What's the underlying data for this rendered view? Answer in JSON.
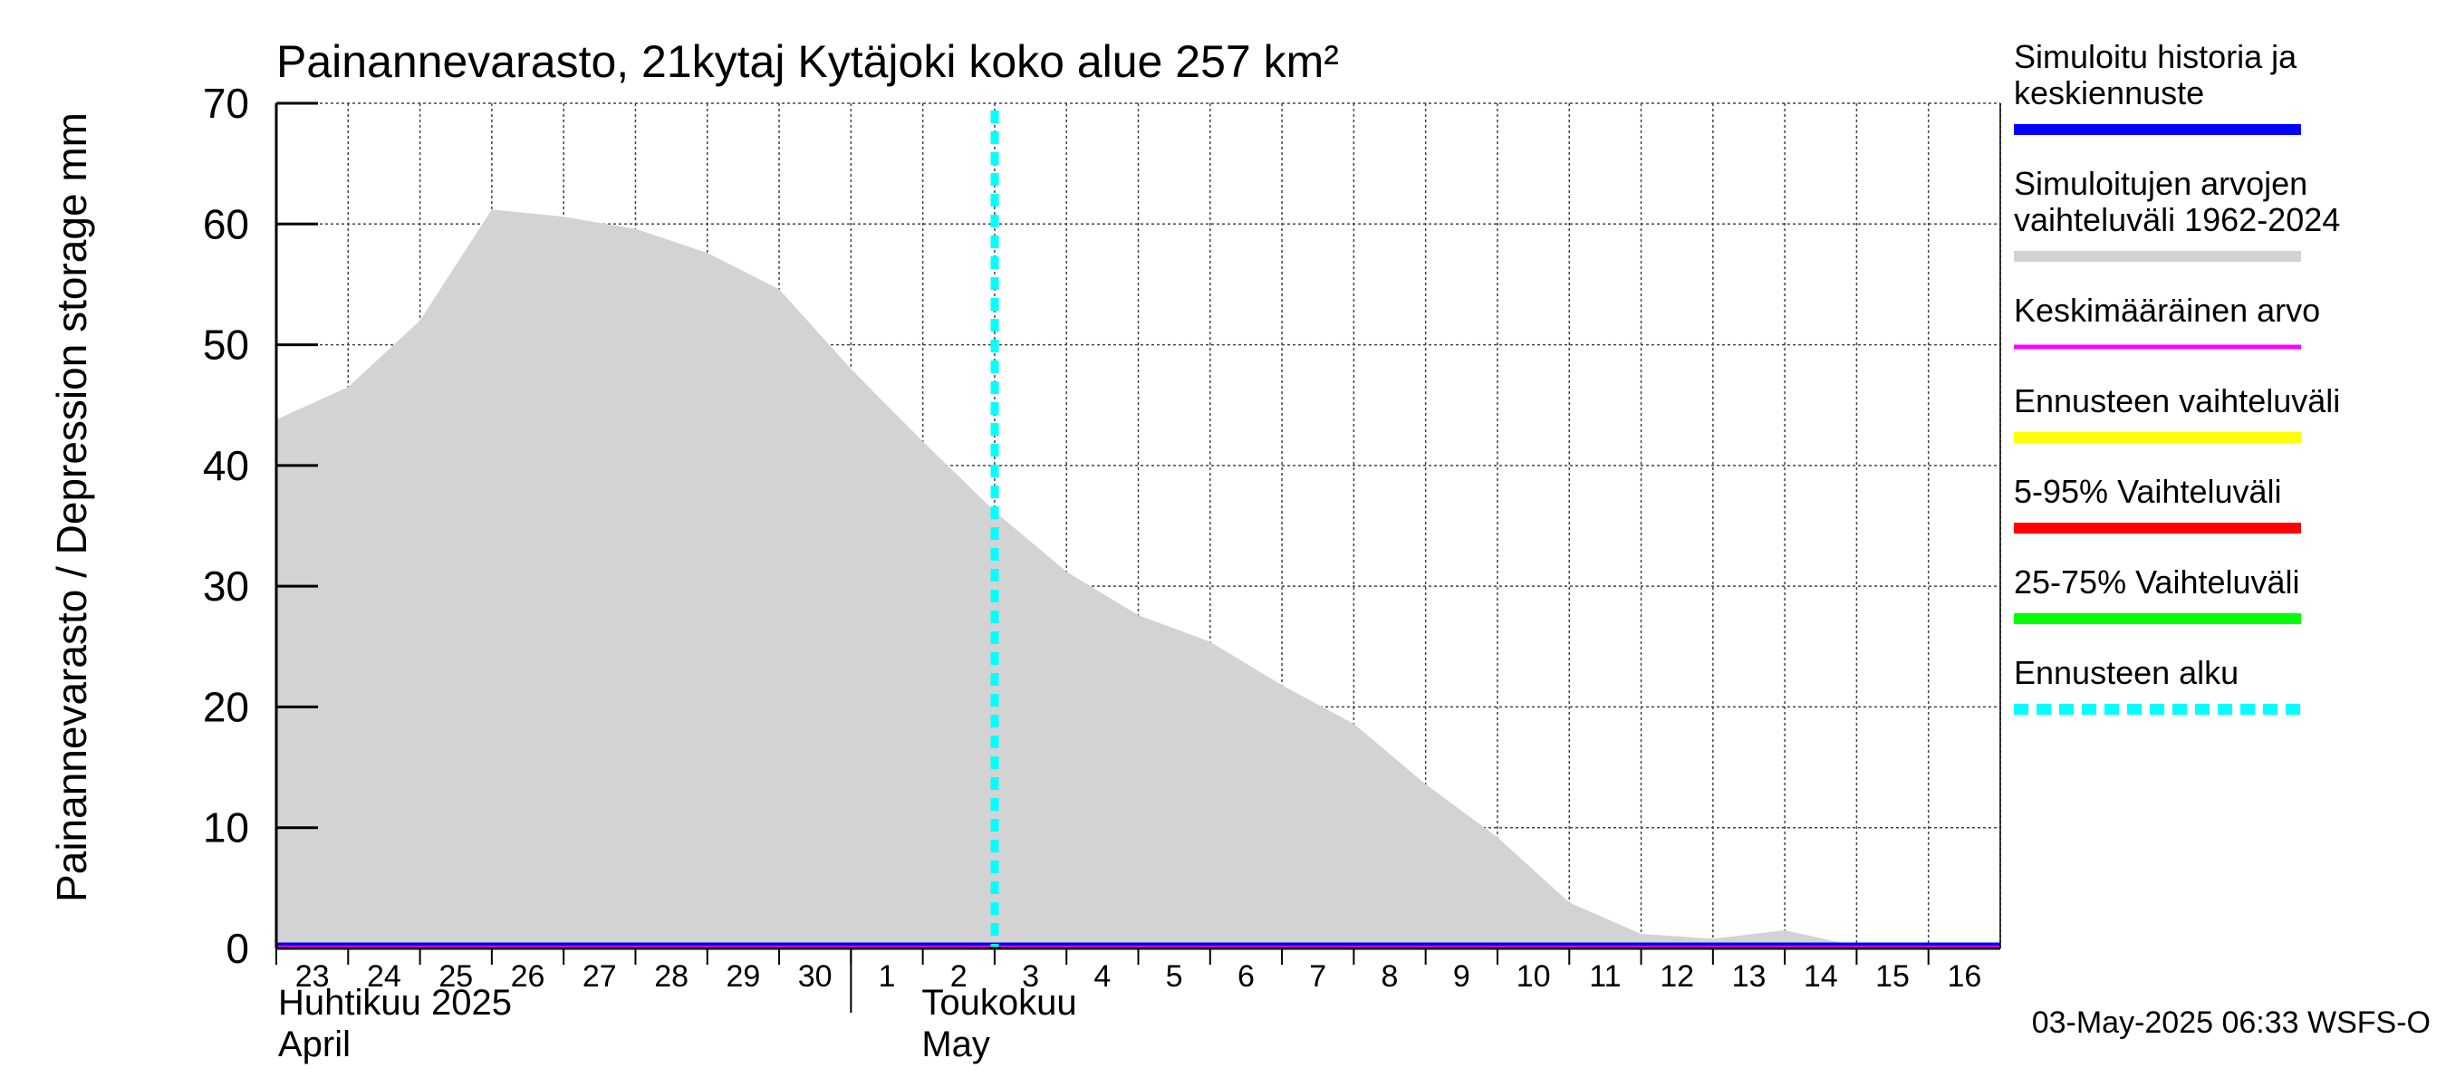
{
  "chart_data": {
    "type": "area",
    "title": "Painannevarasto, 21kytaj Kytäjoki koko alue 257 km²",
    "ylabel": "Painannevarasto / Depression storage    mm",
    "ylim": [
      0,
      70
    ],
    "yticks": [
      "0",
      "10",
      "20",
      "30",
      "40",
      "50",
      "60",
      "70"
    ],
    "x_dates": [
      "2025-04-23",
      "2025-04-24",
      "2025-04-25",
      "2025-04-26",
      "2025-04-27",
      "2025-04-28",
      "2025-04-29",
      "2025-04-30",
      "2025-05-01",
      "2025-05-02",
      "2025-05-03",
      "2025-05-04",
      "2025-05-05",
      "2025-05-06",
      "2025-05-07",
      "2025-05-08",
      "2025-05-09",
      "2025-05-10",
      "2025-05-11",
      "2025-05-12",
      "2025-05-13",
      "2025-05-14",
      "2025-05-15",
      "2025-05-16",
      "2025-05-17"
    ],
    "xticks": [
      "23",
      "24",
      "25",
      "26",
      "27",
      "28",
      "29",
      "30",
      "1",
      "2",
      "3",
      "4",
      "5",
      "6",
      "7",
      "8",
      "9",
      "10",
      "11",
      "12",
      "13",
      "14",
      "15",
      "16"
    ],
    "months": [
      {
        "fi": "Huhtikuu  2025",
        "en": "April"
      },
      {
        "fi": "Toukokuu",
        "en": "May"
      }
    ],
    "forecast_start": "2025-05-03",
    "grid": true,
    "legend_position": "right",
    "series": [
      {
        "name": "Simuloitujen arvojen vaihteluväli 1962-2024",
        "kind": "range",
        "color": "#d3d3d3",
        "x": [
          "2025-04-23",
          "2025-04-24",
          "2025-04-25",
          "2025-04-26",
          "2025-04-27",
          "2025-04-28",
          "2025-04-29",
          "2025-04-30",
          "2025-05-01",
          "2025-05-02",
          "2025-05-03",
          "2025-05-04",
          "2025-05-05",
          "2025-05-06",
          "2025-05-07",
          "2025-05-08",
          "2025-05-09",
          "2025-05-10",
          "2025-05-11",
          "2025-05-12",
          "2025-05-13",
          "2025-05-14",
          "2025-05-15",
          "2025-05-16",
          "2025-05-17"
        ],
        "upper": [
          43.8,
          46.5,
          52.0,
          61.2,
          60.6,
          59.6,
          57.6,
          54.6,
          48.0,
          42.0,
          36.2,
          31.2,
          27.6,
          25.4,
          21.8,
          18.6,
          13.6,
          9.2,
          3.8,
          1.2,
          0.8,
          1.5,
          0.2,
          0.2,
          0.2
        ],
        "lower": [
          0,
          0,
          0,
          0,
          0,
          0,
          0,
          0,
          0,
          0,
          0,
          0,
          0,
          0,
          0,
          0,
          0,
          0,
          0,
          0,
          0,
          0,
          0,
          0,
          0
        ]
      },
      {
        "name": "Simuloitu historia ja keskiennuste",
        "kind": "line",
        "color": "#0000ff",
        "x": [
          "2025-04-23",
          "2025-05-17"
        ],
        "values": [
          0,
          0
        ]
      },
      {
        "name": "Keskimääräinen arvo",
        "kind": "line",
        "color": "#ff00ff",
        "x": [
          "2025-04-23",
          "2025-05-17"
        ],
        "values": [
          0.1,
          0.1
        ]
      }
    ]
  },
  "legend": [
    {
      "lines": [
        "Simuloitu historia ja",
        "keskiennuste"
      ],
      "color": "#0000ff",
      "style": "solid"
    },
    {
      "lines": [
        "Simuloitujen arvojen",
        "vaihteluväli 1962-2024"
      ],
      "color": "#d3d3d3",
      "style": "solid"
    },
    {
      "lines": [
        "Keskimääräinen arvo"
      ],
      "color": "#ff00ff",
      "style": "solid-thin"
    },
    {
      "lines": [
        "Ennusteen vaihteluväli"
      ],
      "color": "#ffff00",
      "style": "solid"
    },
    {
      "lines": [
        "5-95% Vaihteluväli"
      ],
      "color": "#ff0000",
      "style": "solid"
    },
    {
      "lines": [
        "25-75% Vaihteluväli"
      ],
      "color": "#00ff00",
      "style": "solid"
    },
    {
      "lines": [
        "Ennusteen alku"
      ],
      "color": "#00ffff",
      "style": "dashed"
    }
  ],
  "footer": "03-May-2025 06:33 WSFS-O"
}
